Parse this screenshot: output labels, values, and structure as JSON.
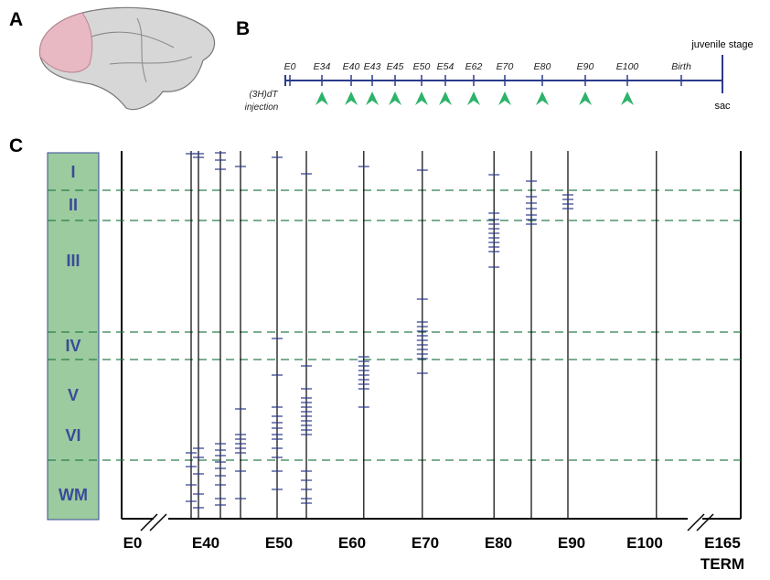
{
  "panels": {
    "a": "A",
    "b": "B",
    "c": "C"
  },
  "timeline": {
    "labels": [
      "E0",
      "E34",
      "E40",
      "E43",
      "E45",
      "E50",
      "E54",
      "E62",
      "E70",
      "E80",
      "E90",
      "E100",
      "Birth"
    ],
    "left_label": "(3H)dT injection",
    "end_top": "juvenile stage",
    "end_bottom": "sac"
  },
  "layers": {
    "names": [
      "I",
      "II",
      "III",
      "IV",
      "V",
      "VI",
      "WM"
    ],
    "boundaries": [
      10.75,
      19,
      49.5,
      57,
      84.5
    ]
  },
  "x_axis": {
    "labels": [
      "E0",
      "E40",
      "E50",
      "E60",
      "E70",
      "E80",
      "E90",
      "E100",
      "E165"
    ],
    "end_label": "TERM"
  },
  "columns": [
    {
      "day": 38,
      "cells": [
        0.75,
        82.5,
        86.25,
        91.25,
        95.75
      ]
    },
    {
      "day": 39,
      "cells": [
        0.75,
        1.75,
        81.25,
        83.75,
        88.25,
        93.75,
        97.5
      ]
    },
    {
      "day": 42,
      "cells": [
        0.5,
        2.5,
        5,
        80,
        81.75,
        83.25,
        85,
        86.75,
        88.75,
        91.25,
        95,
        96.75
      ]
    },
    {
      "day": 44.75,
      "cells": [
        4.25,
        70.5,
        77.5,
        78.75,
        80,
        81.25,
        82.5,
        87.5,
        95
      ]
    },
    {
      "day": 49.75,
      "cells": [
        1.75,
        51.25,
        61.25,
        70,
        72.5,
        74.25,
        75.75,
        77.5,
        78.75,
        81.25,
        83.75,
        87.5,
        92.5
      ]
    },
    {
      "day": 53.75,
      "cells": [
        6.25,
        58.75,
        65,
        67.5,
        68.75,
        70,
        71.25,
        72.5,
        73.75,
        75,
        76.25,
        77.5,
        87.5,
        90,
        92.5,
        95,
        96.25
      ]
    },
    {
      "day": 61.6,
      "cells": [
        4.25,
        56.25,
        57.5,
        58.75,
        60,
        61.25,
        62.5,
        63.75,
        65,
        70
      ]
    },
    {
      "day": 69.6,
      "cells": [
        5.25,
        40.5,
        46.75,
        48,
        49.25,
        50.5,
        51.75,
        53,
        54.25,
        55.5,
        56.75,
        60.75
      ]
    },
    {
      "day": 79.4,
      "cells": [
        6.5,
        17,
        18.75,
        20,
        21.25,
        22.5,
        23.75,
        25,
        26.25,
        27.5,
        31.75
      ]
    },
    {
      "day": 84.5,
      "cells": [
        8.25,
        12.5,
        14.25,
        15.75,
        17.5,
        18.75,
        20
      ]
    },
    {
      "day": 89.5,
      "cells": [
        12,
        13.25,
        14.5,
        15.75
      ]
    },
    {
      "day": 101.6,
      "cells": []
    }
  ]
}
